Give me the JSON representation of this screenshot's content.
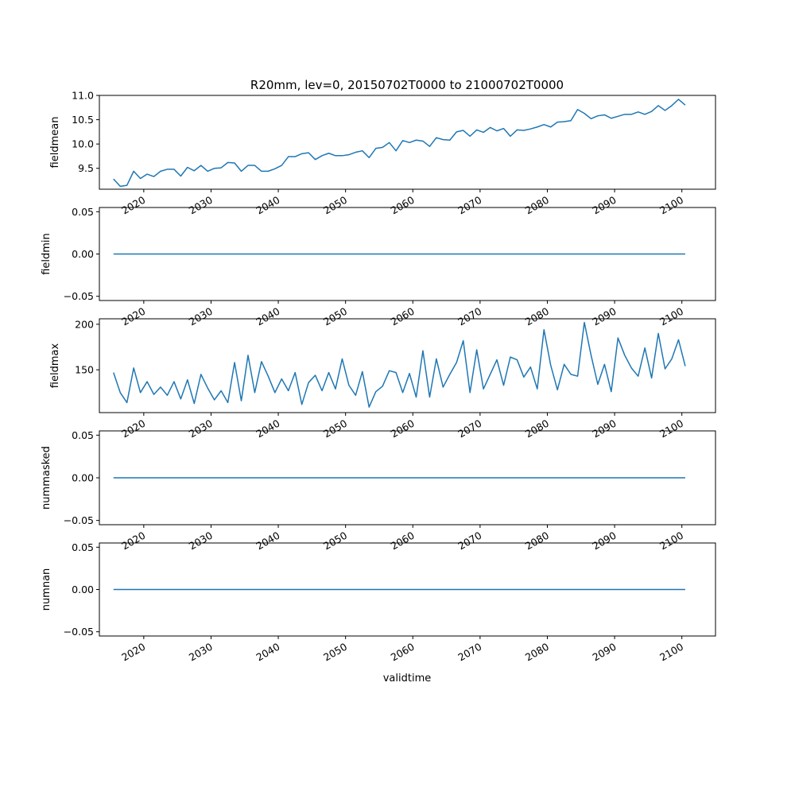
{
  "title": "R20mm, lev=0, 20150702T0000 to 21000702T0000",
  "xlabel": "validtime",
  "line_color": "#1f77b4",
  "chart_data": [
    {
      "type": "line",
      "ylabel": "fieldmean",
      "xlim": [
        2013.4,
        2105.0
      ],
      "ylim": [
        9.07,
        11.0
      ],
      "x_ticks": [
        2020,
        2030,
        2040,
        2050,
        2060,
        2070,
        2080,
        2090,
        2100
      ],
      "y_ticks": [
        9.5,
        10.0,
        10.5,
        11.0
      ],
      "y_tick_labels": [
        "9.5",
        "10.0",
        "10.5",
        "11.0"
      ],
      "x_start": 2015.5,
      "x_step": 1,
      "values": [
        9.28,
        9.13,
        9.15,
        9.44,
        9.29,
        9.38,
        9.33,
        9.44,
        9.48,
        9.48,
        9.34,
        9.52,
        9.45,
        9.56,
        9.44,
        9.5,
        9.51,
        9.62,
        9.61,
        9.44,
        9.56,
        9.56,
        9.44,
        9.44,
        9.49,
        9.56,
        9.74,
        9.74,
        9.8,
        9.82,
        9.68,
        9.76,
        9.81,
        9.76,
        9.76,
        9.78,
        9.83,
        9.86,
        9.72,
        9.91,
        9.93,
        10.03,
        9.86,
        10.07,
        10.03,
        10.08,
        10.06,
        9.95,
        10.13,
        10.09,
        10.08,
        10.25,
        10.28,
        10.16,
        10.29,
        10.24,
        10.34,
        10.27,
        10.32,
        10.16,
        10.29,
        10.28,
        10.31,
        10.35,
        10.4,
        10.35,
        10.45,
        10.46,
        10.48,
        10.71,
        10.63,
        10.52,
        10.58,
        10.6,
        10.53,
        10.57,
        10.61,
        10.61,
        10.66,
        10.61,
        10.67,
        10.79,
        10.69,
        10.79,
        10.92,
        10.8
      ]
    },
    {
      "type": "line",
      "ylabel": "fieldmin",
      "xlim": [
        2013.4,
        2105.0
      ],
      "ylim": [
        -0.055,
        0.055
      ],
      "x_ticks": [
        2020,
        2030,
        2040,
        2050,
        2060,
        2070,
        2080,
        2090,
        2100
      ],
      "y_ticks": [
        -0.05,
        0.0,
        0.05
      ],
      "y_tick_labels": [
        "−0.05",
        "0.00",
        "0.05"
      ],
      "x_start": 2015.5,
      "x_step": 1,
      "constant": 0,
      "count": 86
    },
    {
      "type": "line",
      "ylabel": "fieldmax",
      "xlim": [
        2013.4,
        2105.0
      ],
      "ylim": [
        103,
        206
      ],
      "x_ticks": [
        2020,
        2030,
        2040,
        2050,
        2060,
        2070,
        2080,
        2090,
        2100
      ],
      "y_ticks": [
        150,
        200
      ],
      "y_tick_labels": [
        "150",
        "200"
      ],
      "x_start": 2015.5,
      "x_step": 1,
      "values": [
        147,
        125,
        114,
        152,
        125,
        137,
        123,
        131,
        122,
        137,
        118,
        139,
        113,
        145,
        130,
        117,
        127,
        114,
        158,
        116,
        166,
        125,
        159,
        143,
        125,
        140,
        127,
        147,
        112,
        136,
        144,
        127,
        147,
        129,
        162,
        133,
        122,
        148,
        109,
        126,
        132,
        149,
        147,
        125,
        146,
        120,
        171,
        120,
        162,
        131,
        145,
        158,
        182,
        125,
        172,
        129,
        145,
        161,
        133,
        164,
        161,
        142,
        153,
        129,
        194,
        155,
        128,
        156,
        145,
        143,
        202,
        166,
        134,
        156,
        126,
        185,
        166,
        152,
        143,
        174,
        141,
        190,
        151,
        162,
        183,
        154
      ]
    },
    {
      "type": "line",
      "ylabel": "nummasked",
      "xlim": [
        2013.4,
        2105.0
      ],
      "ylim": [
        -0.055,
        0.055
      ],
      "x_ticks": [
        2020,
        2030,
        2040,
        2050,
        2060,
        2070,
        2080,
        2090,
        2100
      ],
      "y_ticks": [
        -0.05,
        0.0,
        0.05
      ],
      "y_tick_labels": [
        "−0.05",
        "0.00",
        "0.05"
      ],
      "x_start": 2015.5,
      "x_step": 1,
      "constant": 0,
      "count": 86
    },
    {
      "type": "line",
      "ylabel": "numnan",
      "xlim": [
        2013.4,
        2105.0
      ],
      "ylim": [
        -0.055,
        0.055
      ],
      "x_ticks": [
        2020,
        2030,
        2040,
        2050,
        2060,
        2070,
        2080,
        2090,
        2100
      ],
      "y_ticks": [
        -0.05,
        0.0,
        0.05
      ],
      "y_tick_labels": [
        "−0.05",
        "0.00",
        "0.05"
      ],
      "x_start": 2015.5,
      "x_step": 1,
      "constant": 0,
      "count": 86
    }
  ]
}
